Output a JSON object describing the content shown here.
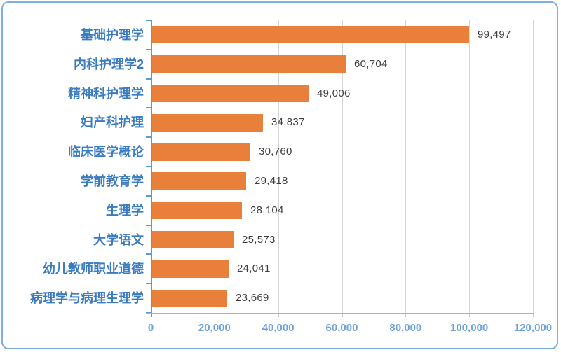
{
  "chart_data": {
    "type": "bar",
    "orientation": "horizontal",
    "title": "",
    "xlabel": "",
    "ylabel": "",
    "categories": [
      "基础护理学",
      "内科护理学2",
      "精神科护理学",
      "妇产科护理",
      "临床医学概论",
      "学前教育学",
      "生理学",
      "大学语文",
      "幼儿教师职业道德",
      "病理学与病理生理学"
    ],
    "values": [
      99497,
      60704,
      49006,
      34837,
      30760,
      29418,
      28104,
      25573,
      24041,
      23669
    ],
    "value_labels": [
      "99,497",
      "60,704",
      "49,006",
      "34,837",
      "30,760",
      "29,418",
      "28,104",
      "25,573",
      "24,041",
      "23,669"
    ],
    "x_ticks": [
      "0",
      "20,000",
      "40,000",
      "60,000",
      "80,000",
      "100,000",
      "120,000"
    ],
    "xlim": [
      0,
      120000
    ],
    "grid": "vertical",
    "legend": "none",
    "colors": {
      "bar": "#e8803b",
      "category_label": "#3a7cbf",
      "value_label": "#3f3f3f",
      "x_tick_label": "#6fa3d8",
      "gridline": "#d6d6d6",
      "y_axis": "#5b9bd5",
      "x_axis": "#8fb9e0",
      "frame_border": "#7fafdd",
      "background": "#ffffff"
    }
  }
}
